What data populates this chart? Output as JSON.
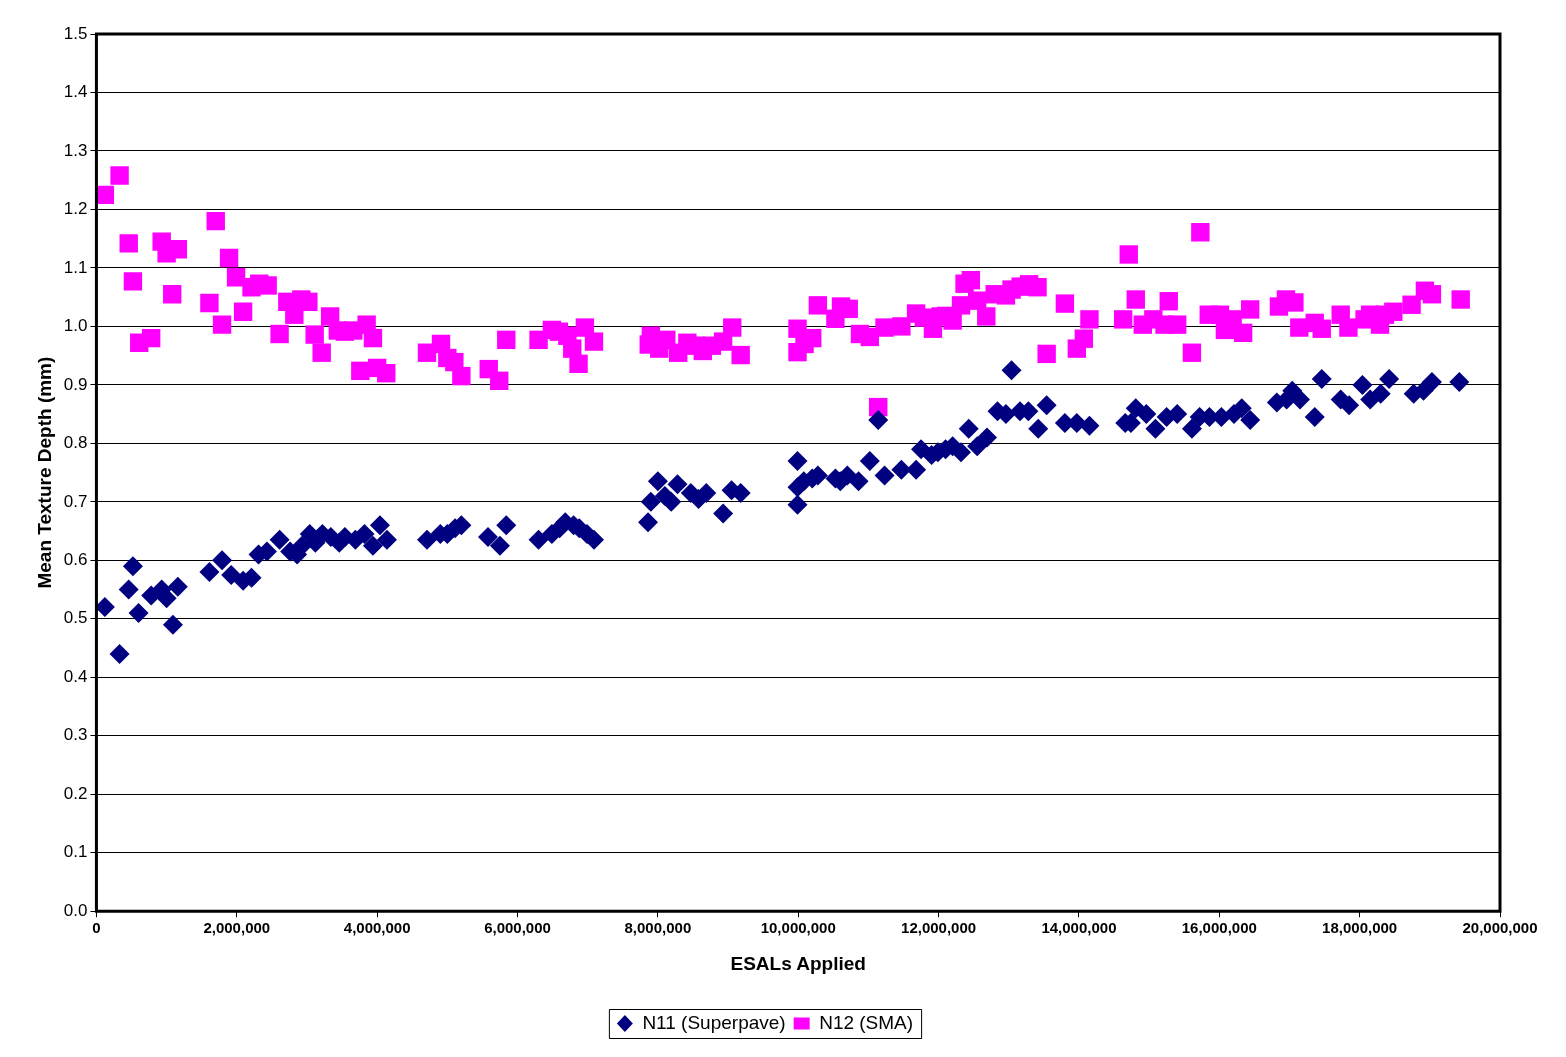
{
  "chart_data": {
    "type": "scatter",
    "xlabel": "ESALs Applied",
    "ylabel": "Mean Texture Depth (mm)",
    "xlim": [
      0,
      20000000
    ],
    "xticks": [
      0,
      {
        "value": 2000000,
        "label": "2,000,000"
      },
      {
        "value": 4000000,
        "label": "4,000,000"
      },
      {
        "value": 6000000,
        "label": "6,000,000"
      },
      {
        "value": 8000000,
        "label": "8,000,000"
      },
      {
        "value": 10000000,
        "label": "10,000,000"
      },
      {
        "value": 12000000,
        "label": "12,000,000"
      },
      {
        "value": 14000000,
        "label": "14,000,000"
      },
      {
        "value": 16000000,
        "label": "16,000,000"
      },
      {
        "value": 18000000,
        "label": "18,000,000"
      },
      {
        "value": 20000000,
        "label": "20,000,000"
      }
    ],
    "ylim": [
      0,
      1.5
    ],
    "yticks": [
      {
        "value": 0,
        "label": "0.0"
      },
      0.1,
      0.2,
      0.3,
      0.4,
      0.5,
      0.6,
      0.7,
      0.8,
      0.9,
      {
        "value": 1,
        "label": "1.0"
      },
      1.1,
      1.2,
      1.3,
      1.4,
      1.5
    ],
    "grid": "y",
    "legend": "bottom",
    "series": [
      {
        "name": "N11 (Superpave)",
        "color": "#000080",
        "marker": "diamond",
        "x": [
          120000,
          330000,
          460000,
          520000,
          600000,
          780000,
          930000,
          1000000,
          1090000,
          1160000,
          1610000,
          1790000,
          1920000,
          2090000,
          2210000,
          2310000,
          2430000,
          2610000,
          2760000,
          2860000,
          2930000,
          3040000,
          3120000,
          3220000,
          3340000,
          3460000,
          3540000,
          3690000,
          3820000,
          3940000,
          4040000,
          4140000,
          4710000,
          4900000,
          5000000,
          5110000,
          5200000,
          5580000,
          5750000,
          5840000,
          6300000,
          6490000,
          6600000,
          6680000,
          6800000,
          6880000,
          6990000,
          7090000,
          7860000,
          7900000,
          8000000,
          8100000,
          8190000,
          8280000,
          8470000,
          8580000,
          8690000,
          8930000,
          9050000,
          9180000,
          9990000,
          9990000,
          9990000,
          10080000,
          10200000,
          10280000,
          10530000,
          10600000,
          10700000,
          10860000,
          11020000,
          11140000,
          11230000,
          11470000,
          11680000,
          11750000,
          11900000,
          11990000,
          12100000,
          12200000,
          12320000,
          12430000,
          12550000,
          12690000,
          12840000,
          12960000,
          13040000,
          13160000,
          13280000,
          13420000,
          13540000,
          13800000,
          13970000,
          14150000,
          14660000,
          14740000,
          14810000,
          14960000,
          15090000,
          15250000,
          15400000,
          15610000,
          15720000,
          15860000,
          16030000,
          16210000,
          16320000,
          16440000,
          16820000,
          16960000,
          17040000,
          17150000,
          17360000,
          17460000,
          17730000,
          17850000,
          18040000,
          18150000,
          18300000,
          18420000,
          18770000,
          18910000,
          19030000,
          19420000
        ],
        "values": [
          0.52,
          0.44,
          0.55,
          0.59,
          0.51,
          0.54,
          0.55,
          0.535,
          0.49,
          0.555,
          0.58,
          0.6,
          0.575,
          0.565,
          0.57,
          0.61,
          0.615,
          0.635,
          0.615,
          0.61,
          0.625,
          0.645,
          0.63,
          0.645,
          0.64,
          0.63,
          0.64,
          0.635,
          0.645,
          0.625,
          0.66,
          0.635,
          0.635,
          0.645,
          0.645,
          0.655,
          0.66,
          0.64,
          0.625,
          0.66,
          0.635,
          0.645,
          0.655,
          0.665,
          0.66,
          0.655,
          0.645,
          0.635,
          0.665,
          0.7,
          0.735,
          0.71,
          0.7,
          0.73,
          0.715,
          0.705,
          0.715,
          0.68,
          0.72,
          0.715,
          0.77,
          0.695,
          0.725,
          0.735,
          0.74,
          0.745,
          0.74,
          0.735,
          0.745,
          0.735,
          0.77,
          0.84,
          0.745,
          0.755,
          0.755,
          0.79,
          0.78,
          0.785,
          0.79,
          0.795,
          0.785,
          0.825,
          0.795,
          0.81,
          0.855,
          0.85,
          0.925,
          0.855,
          0.855,
          0.825,
          0.865,
          0.835,
          0.835,
          0.83,
          0.835,
          0.835,
          0.86,
          0.85,
          0.825,
          0.845,
          0.85,
          0.825,
          0.845,
          0.845,
          0.845,
          0.85,
          0.86,
          0.84,
          0.87,
          0.875,
          0.89,
          0.875,
          0.845,
          0.91,
          0.875,
          0.865,
          0.9,
          0.875,
          0.885,
          0.91,
          0.885,
          0.89,
          0.905,
          0.905
        ]
      },
      {
        "name": "N12 (SMA)",
        "color": "#ff00ff",
        "marker": "square",
        "x": [
          120000,
          330000,
          460000,
          520000,
          610000,
          780000,
          930000,
          1000000,
          1080000,
          1160000,
          1610000,
          1700000,
          1790000,
          1890000,
          1990000,
          2090000,
          2210000,
          2320000,
          2440000,
          2610000,
          2720000,
          2820000,
          2920000,
          3020000,
          3110000,
          3210000,
          3330000,
          3440000,
          3540000,
          3660000,
          3760000,
          3850000,
          3940000,
          4000000,
          4130000,
          4710000,
          4910000,
          5000000,
          5100000,
          5200000,
          5590000,
          5740000,
          5840000,
          6300000,
          6490000,
          6590000,
          6710000,
          6780000,
          6870000,
          6960000,
          7090000,
          7870000,
          7900000,
          8020000,
          8120000,
          8290000,
          8420000,
          8540000,
          8640000,
          8770000,
          8930000,
          9060000,
          9180000,
          9990000,
          9990000,
          10090000,
          10200000,
          10280000,
          10530000,
          10610000,
          10720000,
          10880000,
          11020000,
          11140000,
          11230000,
          11470000,
          11680000,
          11790000,
          11920000,
          12030000,
          12110000,
          12200000,
          12320000,
          12370000,
          12460000,
          12550000,
          12680000,
          12800000,
          12960000,
          13040000,
          13170000,
          13290000,
          13410000,
          13540000,
          13800000,
          13970000,
          14070000,
          14150000,
          14630000,
          14710000,
          14810000,
          14910000,
          15060000,
          15220000,
          15280000,
          15400000,
          15610000,
          15730000,
          15850000,
          16010000,
          16080000,
          16190000,
          16340000,
          16440000,
          16850000,
          16950000,
          17070000,
          17140000,
          17360000,
          17460000,
          17730000,
          17840000,
          18070000,
          18150000,
          18290000,
          18360000,
          18480000,
          18740000,
          18930000,
          19030000,
          19440000
        ],
        "values": [
          1.225,
          1.258,
          1.142,
          1.077,
          0.972,
          0.98,
          1.145,
          1.125,
          1.055,
          1.132,
          1.04,
          1.18,
          1.003,
          1.117,
          1.084,
          1.025,
          1.067,
          1.073,
          1.07,
          0.987,
          1.042,
          1.02,
          1.046,
          1.042,
          0.986,
          0.955,
          1.017,
          0.993,
          0.991,
          0.993,
          0.924,
          1.003,
          0.98,
          0.929,
          0.92,
          0.955,
          0.97,
          0.946,
          0.939,
          0.915,
          0.927,
          0.907,
          0.977,
          0.977,
          0.994,
          0.991,
          0.984,
          0.962,
          0.936,
          0.998,
          0.974,
          0.969,
          0.984,
          0.962,
          0.977,
          0.955,
          0.972,
          0.967,
          0.958,
          0.967,
          0.974,
          0.998,
          0.951,
          0.996,
          0.956,
          0.97,
          0.98,
          1.036,
          1.013,
          1.034,
          1.03,
          0.987,
          0.982,
          0.862,
          0.998,
          1.0,
          1.022,
          1.015,
          0.996,
          1.017,
          1.018,
          1.01,
          1.036,
          1.073,
          1.079,
          1.044,
          1.017,
          1.055,
          1.053,
          1.063,
          1.068,
          1.072,
          1.067,
          0.953,
          1.039,
          0.962,
          0.979,
          1.012,
          1.012,
          1.123,
          1.046,
          1.003,
          1.012,
          1.003,
          1.043,
          1.003,
          0.955,
          1.161,
          1.02,
          1.02,
          0.994,
          1.012,
          0.989,
          1.029,
          1.034,
          1.046,
          1.041,
          0.998,
          1.006,
          0.996,
          1.02,
          0.998,
          1.012,
          1.02,
          1.003,
          1.02,
          1.025,
          1.037,
          1.061,
          1.055,
          1.046
        ]
      }
    ]
  }
}
